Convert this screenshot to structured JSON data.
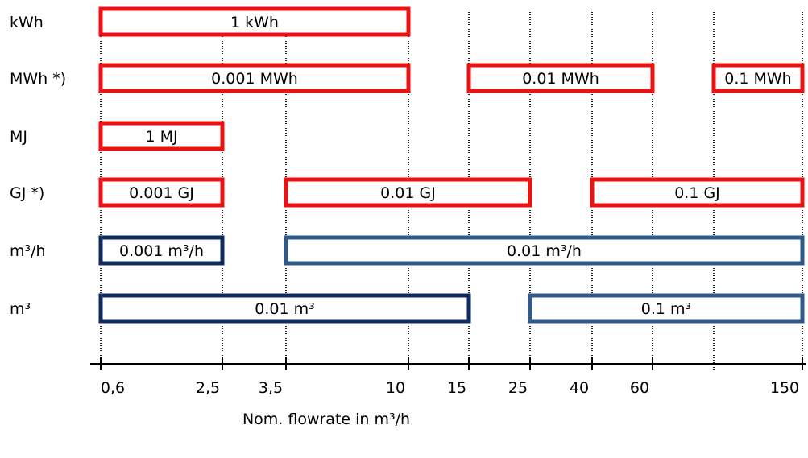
{
  "rows": [
    {
      "label": "kWh"
    },
    {
      "label": "MWh *)"
    },
    {
      "label": "MJ"
    },
    {
      "label": "GJ *)"
    },
    {
      "label": "m³/h"
    },
    {
      "label": "m³"
    }
  ],
  "boxes": [
    {
      "row": 0,
      "from": "0,6",
      "to": "10",
      "label": "1 kWh",
      "color": "red"
    },
    {
      "row": 1,
      "from": "0,6",
      "to": "10",
      "label": "0.001 MWh",
      "color": "red"
    },
    {
      "row": 1,
      "from": "15",
      "to": "60",
      "label": "0.01 MWh",
      "color": "red"
    },
    {
      "row": 1,
      "from": "150_left",
      "to": "150",
      "label": "0.1 MWh",
      "color": "red"
    },
    {
      "row": 2,
      "from": "0,6",
      "to": "2,5",
      "label": "1 MJ",
      "color": "red"
    },
    {
      "row": 3,
      "from": "0,6",
      "to": "2,5",
      "label": "0.001 GJ",
      "color": "red"
    },
    {
      "row": 3,
      "from": "3,5",
      "to": "25",
      "label": "0.01 GJ",
      "color": "red"
    },
    {
      "row": 3,
      "from": "40",
      "to": "150",
      "label": "0.1 GJ",
      "color": "red"
    },
    {
      "row": 4,
      "from": "0,6",
      "to": "2,5",
      "label": "0.001 m³/h",
      "color": "darkblue"
    },
    {
      "row": 4,
      "from": "3,5",
      "to": "150",
      "label": "0.01 m³/h",
      "color": "blue"
    },
    {
      "row": 5,
      "from": "0,6",
      "to": "15",
      "label": "0.01 m³",
      "color": "darkblue"
    },
    {
      "row": 5,
      "from": "25",
      "to": "150",
      "label": "0.1 m³",
      "color": "blue"
    }
  ],
  "axis": {
    "ticks": [
      "0,6",
      "2,5",
      "3,5",
      "10",
      "15",
      "25",
      "40",
      "60",
      "150"
    ],
    "title": "Nom. flowrate in m³/h"
  },
  "colors": {
    "red": "#ee1111",
    "darkblue": "#0f2a5c",
    "blue": "#2f5a8a",
    "axis": "#000000",
    "guide": "#222222"
  }
}
